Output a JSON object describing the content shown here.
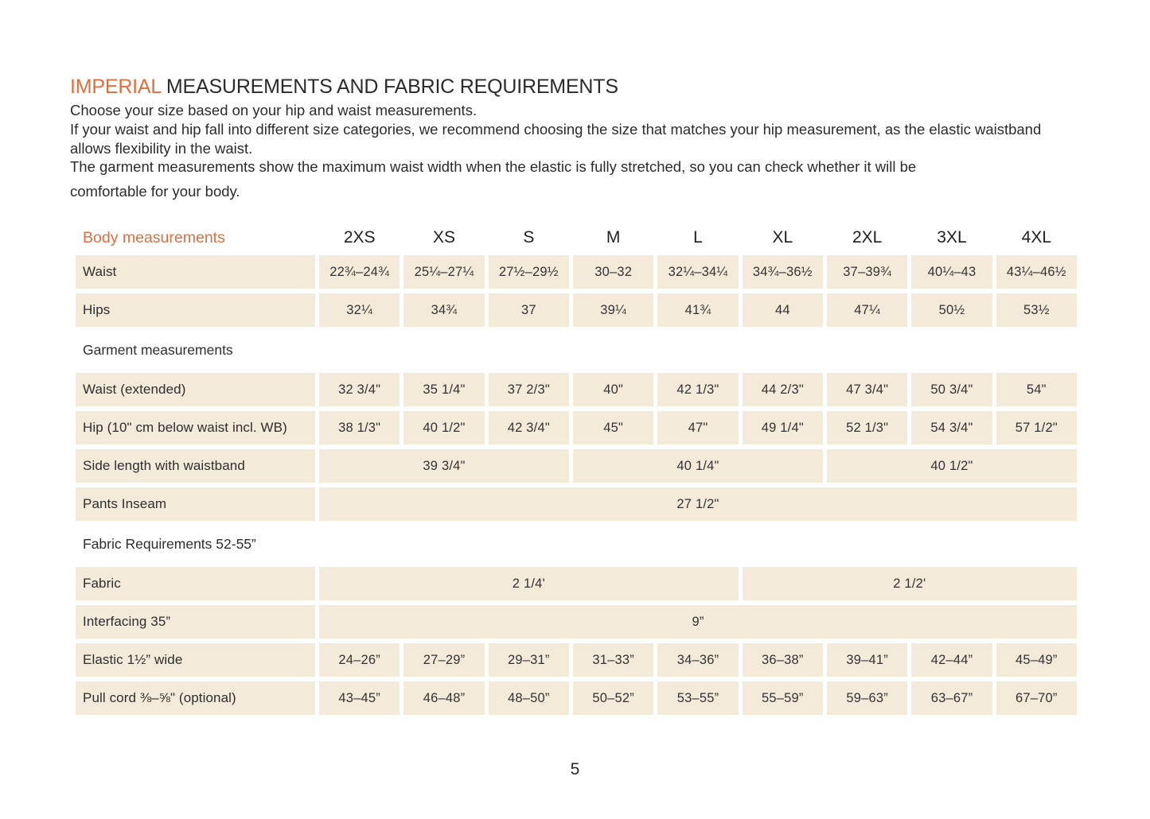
{
  "colors": {
    "accent": "#dd6f3f",
    "row_bg": "#f3ead9",
    "text": "#2e2e2e"
  },
  "header": {
    "title_highlight": "IMPERIAL",
    "title_rest": " MEASUREMENTS AND FABRIC REQUIREMENTS",
    "intro_line1": "Choose your size based on your hip and waist measurements.",
    "intro_line2": "If your waist and hip fall into different size categories, we recommend choosing the size that matches your hip measurement, as the elastic waistband allows flexibility in the waist.",
    "intro_line3_head": "The garment measurements show the maximum waist width when the elastic is fully stretched, so you can check whether it will be",
    "intro_line3_tail": "comfortable for your body."
  },
  "table": {
    "header_label": "Body measurements",
    "sizes": [
      "2XS",
      "XS",
      "S",
      "M",
      "L",
      "XL",
      "2XL",
      "3XL",
      "4XL"
    ],
    "waist": {
      "label": "Waist",
      "values": [
        "22¾–24¾",
        "25¼–27¼",
        "27½–29½",
        "30–32",
        "32¼–34¼",
        "34¾–36½",
        "37–39¾",
        "40¼–43",
        "43¼–46½"
      ]
    },
    "hips": {
      "label": "Hips",
      "values": [
        "32¼",
        "34¾",
        "37",
        "39¼",
        "41¾",
        "44",
        "47¼",
        "50½",
        "53½"
      ]
    },
    "garment_section": "Garment measurements",
    "waist_extended": {
      "label": "Waist (extended)",
      "values": [
        "32 3/4\"",
        "35 1/4\"",
        "37 2/3\"",
        "40\"",
        "42 1/3\"",
        "44 2/3\"",
        "47 3/4\"",
        "50 3/4\"",
        "54\""
      ]
    },
    "hip_below": {
      "label": "Hip (10\" cm below waist incl. WB)",
      "values": [
        "38 1/3\"",
        "40 1/2\"",
        "42 3/4\"",
        "45\"",
        "47\"",
        "49 1/4\"",
        "52 1/3\"",
        "54 3/4\"",
        "57 1/2\""
      ]
    },
    "side_length": {
      "label": "Side length with waistband",
      "values": [
        "39 3/4\"",
        "40 1/4\"",
        "40 1/2\""
      ]
    },
    "pants_inseam": {
      "label": "Pants Inseam",
      "values": [
        "27 1/2\""
      ]
    },
    "fabric_section": "Fabric Requirements 52-55”",
    "fabric": {
      "label": "Fabric",
      "values": [
        "2 1/4'",
        "2 1/2'"
      ]
    },
    "interfacing": {
      "label": "Interfacing 35”",
      "values": [
        "9”"
      ]
    },
    "elastic": {
      "label": "Elastic 1½” wide",
      "values": [
        "24–26”",
        "27–29”",
        "29–31”",
        "31–33”",
        "34–36”",
        "36–38”",
        "39–41”",
        "42–44”",
        "45–49”"
      ]
    },
    "pull_cord": {
      "label": "Pull cord ⅜–⅝\" (optional)",
      "values": [
        "43–45”",
        "46–48”",
        "48–50”",
        "50–52”",
        "53–55”",
        "55–59”",
        "59–63”",
        "63–67”",
        "67–70”"
      ]
    }
  },
  "footer": {
    "page_number": "5"
  }
}
